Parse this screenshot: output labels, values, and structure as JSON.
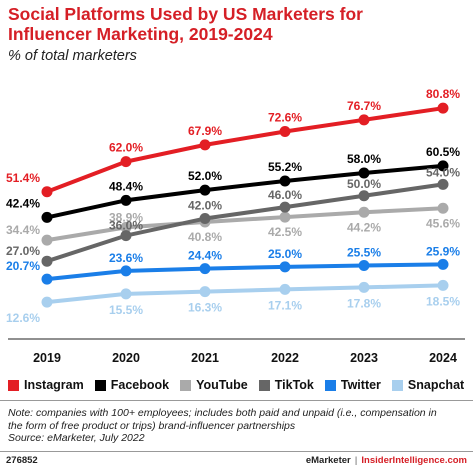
{
  "chart_data": {
    "type": "line",
    "title_line1": "Social Platforms Used by US Marketers for",
    "title_line2": "Influencer Marketing, 2019-2024",
    "subtitle": "% of total marketers",
    "categories": [
      "2019",
      "2020",
      "2021",
      "2022",
      "2023",
      "2024"
    ],
    "ylim": [
      0,
      90
    ],
    "grid": false,
    "legend_position": "bottom",
    "series": [
      {
        "name": "Instagram",
        "color": "#e31e24",
        "values": [
          51.4,
          62.0,
          67.9,
          72.6,
          76.7,
          80.8
        ],
        "labels": [
          "51.4%",
          "62.0%",
          "67.9%",
          "72.6%",
          "76.7%",
          "80.8%"
        ]
      },
      {
        "name": "Facebook",
        "color": "#000000",
        "values": [
          42.4,
          48.4,
          52.0,
          55.2,
          58.0,
          60.5
        ],
        "labels": [
          "42.4%",
          "48.4%",
          "52.0%",
          "55.2%",
          "58.0%",
          "60.5%"
        ]
      },
      {
        "name": "YouTube",
        "color": "#aaaaaa",
        "values": [
          34.4,
          38.9,
          40.8,
          42.5,
          44.2,
          45.6
        ],
        "labels": [
          "34.4%",
          "38.9%",
          "40.8%",
          "42.5%",
          "44.2%",
          "45.6%"
        ]
      },
      {
        "name": "TikTok",
        "color": "#666666",
        "values": [
          27.0,
          36.0,
          42.0,
          46.0,
          50.0,
          54.0
        ],
        "labels": [
          "27.0%",
          "36.0%",
          "42.0%",
          "46.0%",
          "50.0%",
          "54.0%"
        ]
      },
      {
        "name": "Twitter",
        "color": "#1a7ee8",
        "values": [
          20.7,
          23.6,
          24.4,
          25.0,
          25.5,
          25.9
        ],
        "labels": [
          "20.7%",
          "23.6%",
          "24.4%",
          "25.0%",
          "25.5%",
          "25.9%"
        ]
      },
      {
        "name": "Snapchat",
        "color": "#a8cfee",
        "values": [
          12.6,
          15.5,
          16.3,
          17.1,
          17.8,
          18.5
        ],
        "labels": [
          "12.6%",
          "15.5%",
          "16.3%",
          "17.1%",
          "17.8%",
          "18.5%"
        ]
      }
    ]
  },
  "footer": {
    "note_line1": "Note: companies with 100+ employees; includes both paid and unpaid (i.e., compensation in",
    "note_line2": "the form of free product or trips) brand-influencer partnerships",
    "source": "Source: eMarketer, July 2022",
    "chart_id": "276852",
    "brand_emarketer": "eMarketer",
    "brand_separator": "|",
    "brand_insider": "InsiderIntelligence.com"
  }
}
